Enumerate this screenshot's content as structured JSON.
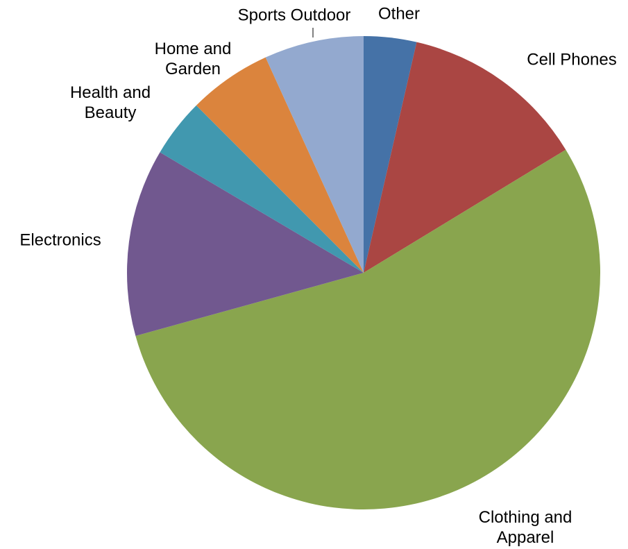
{
  "chart_data": {
    "type": "pie",
    "categories": [
      "Other",
      "Cell Phones",
      "Clothing and Apparel",
      "Electronics",
      "Health and Beauty",
      "Home and Garden",
      "Sports Outdoor"
    ],
    "values": [
      3.6,
      12.7,
      54.4,
      12.8,
      4.0,
      5.7,
      6.8
    ],
    "colors": [
      "#4572a7",
      "#aa4643",
      "#89a54e",
      "#71588f",
      "#4198af",
      "#db843d",
      "#93a9cf"
    ]
  }
}
